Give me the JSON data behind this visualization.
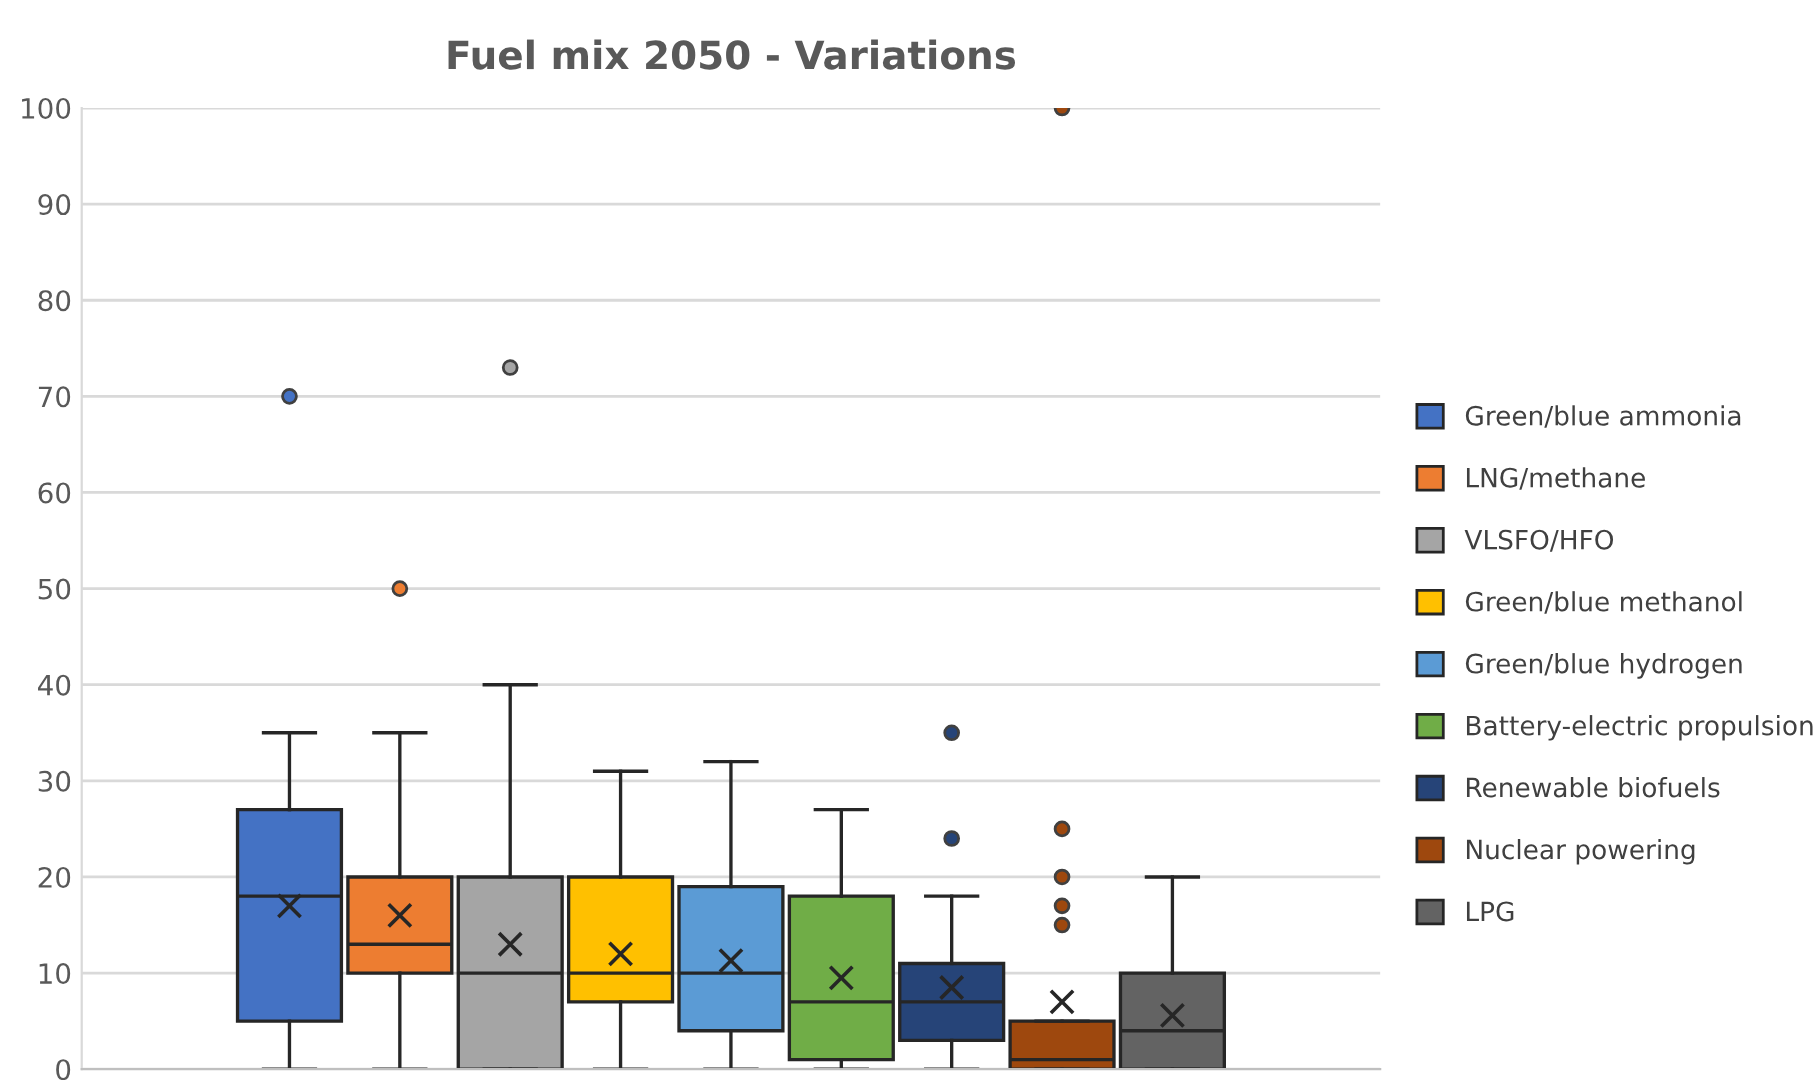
{
  "chart_data": {
    "type": "box",
    "title": "Fuel mix 2050 - Variations",
    "categories": [
      null
    ],
    "ylim": [
      0,
      100
    ],
    "yticks": [
      0,
      10,
      20,
      30,
      40,
      50,
      60,
      70,
      80,
      90,
      100
    ],
    "grid": "y",
    "legend": "right",
    "series": [
      {
        "name": "Green/blue ammonia",
        "color": "#4472c4",
        "boxes": [
          {
            "low": 0,
            "q1": 5,
            "median": 18,
            "q3": 27,
            "high": 35,
            "mean": 17,
            "outliers": [
              70
            ]
          }
        ]
      },
      {
        "name": "LNG/methane",
        "color": "#ed7d31",
        "boxes": [
          {
            "low": 0,
            "q1": 10,
            "median": 13,
            "q3": 20,
            "high": 35,
            "mean": 16,
            "outliers": [
              50
            ]
          }
        ]
      },
      {
        "name": "VLSFO/HFO",
        "color": "#a5a5a5",
        "boxes": [
          {
            "low": 0,
            "q1": 0,
            "median": 10,
            "q3": 20,
            "high": 40,
            "mean": 13,
            "outliers": [
              73
            ]
          }
        ]
      },
      {
        "name": "Green/blue methanol",
        "color": "#ffc000",
        "boxes": [
          {
            "low": 0,
            "q1": 7,
            "median": 10,
            "q3": 20,
            "high": 31,
            "mean": 12
          }
        ]
      },
      {
        "name": "Green/blue hydrogen",
        "color": "#5b9bd5",
        "boxes": [
          {
            "low": 0,
            "q1": 4,
            "median": 10,
            "q3": 19,
            "high": 32,
            "mean": 11.3
          }
        ]
      },
      {
        "name": "Battery-electric propulsion",
        "color": "#70ad47",
        "boxes": [
          {
            "low": 0,
            "q1": 1,
            "median": 7,
            "q3": 18,
            "high": 27,
            "mean": 9.5
          }
        ]
      },
      {
        "name": "Renewable biofuels",
        "color": "#264478",
        "boxes": [
          {
            "low": 0,
            "q1": 3,
            "median": 7,
            "q3": 11,
            "high": 18,
            "mean": 8.5,
            "outliers": [
              24,
              35
            ]
          }
        ]
      },
      {
        "name": "Nuclear powering",
        "color": "#9e480e",
        "boxes": [
          {
            "low": 0,
            "q1": 0,
            "median": 1,
            "q3": 5,
            "high": 5,
            "mean": 7,
            "outliers": [
              15,
              17,
              20,
              25,
              100
            ]
          }
        ]
      },
      {
        "name": "LPG",
        "color": "#636363",
        "boxes": [
          {
            "low": 0,
            "q1": 0,
            "median": 4,
            "q3": 10,
            "high": 20,
            "mean": 5.6
          }
        ]
      }
    ]
  }
}
